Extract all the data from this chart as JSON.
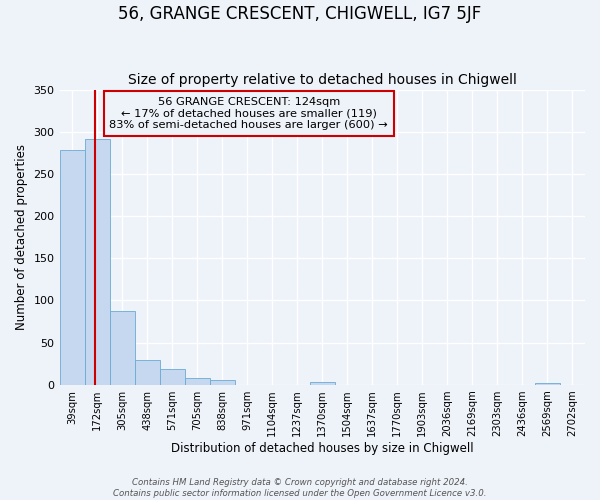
{
  "title": "56, GRANGE CRESCENT, CHIGWELL, IG7 5JF",
  "subtitle": "Size of property relative to detached houses in Chigwell",
  "xlabel": "Distribution of detached houses by size in Chigwell",
  "ylabel": "Number of detached properties",
  "bin_labels": [
    "39sqm",
    "172sqm",
    "305sqm",
    "438sqm",
    "571sqm",
    "705sqm",
    "838sqm",
    "971sqm",
    "1104sqm",
    "1237sqm",
    "1370sqm",
    "1504sqm",
    "1637sqm",
    "1770sqm",
    "1903sqm",
    "2036sqm",
    "2169sqm",
    "2303sqm",
    "2436sqm",
    "2569sqm",
    "2702sqm"
  ],
  "bar_heights": [
    278,
    291,
    88,
    30,
    19,
    8,
    6,
    0,
    0,
    0,
    3,
    0,
    0,
    0,
    0,
    0,
    0,
    0,
    0,
    2,
    0
  ],
  "bar_color": "#c5d8ef",
  "bar_edge_color": "#6aaad4",
  "property_line_bin": 0.92,
  "property_line_color": "#cc0000",
  "annotation_title": "56 GRANGE CRESCENT: 124sqm",
  "annotation_line1": "← 17% of detached houses are smaller (119)",
  "annotation_line2": "83% of semi-detached houses are larger (600) →",
  "annotation_box_color": "#cc0000",
  "ylim": [
    0,
    350
  ],
  "yticks": [
    0,
    50,
    100,
    150,
    200,
    250,
    300,
    350
  ],
  "footer1": "Contains HM Land Registry data © Crown copyright and database right 2024.",
  "footer2": "Contains public sector information licensed under the Open Government Licence v3.0.",
  "bg_color": "#eef2f9",
  "grid_color": "#ffffff",
  "title_fontsize": 12,
  "subtitle_fontsize": 10
}
